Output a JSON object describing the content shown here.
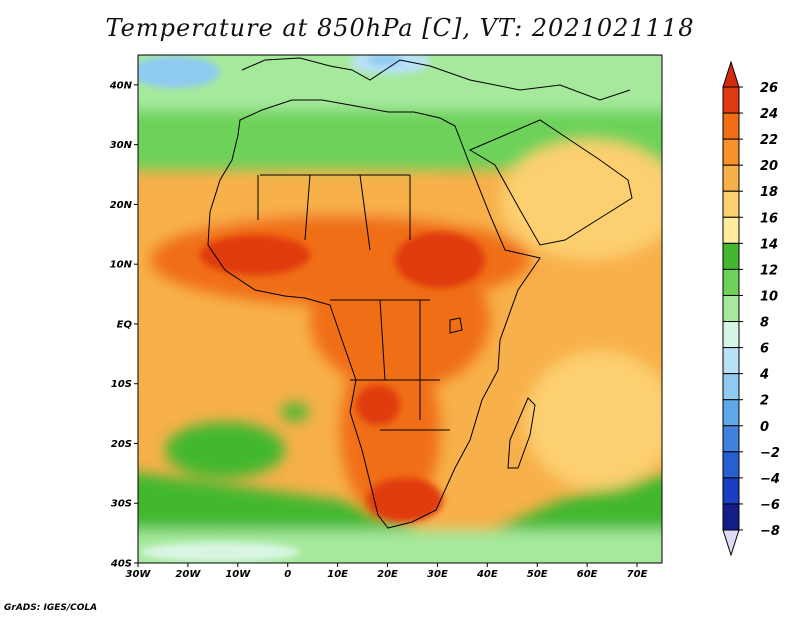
{
  "title": "Temperature at 850hPa [C], VT: 2021021118",
  "credit": "GrADS: IGES/COLA",
  "map": {
    "lon_range": [
      -30,
      75
    ],
    "lat_range": [
      -40,
      45
    ],
    "x_ticks": [
      "30W",
      "20W",
      "10W",
      "0",
      "10E",
      "20E",
      "30E",
      "40E",
      "50E",
      "60E",
      "70E"
    ],
    "y_ticks": [
      "40N",
      "30N",
      "20N",
      "10N",
      "EQ",
      "10S",
      "20S",
      "30S",
      "40S"
    ]
  },
  "colorbar": {
    "levels": [
      "26",
      "24",
      "22",
      "20",
      "18",
      "16",
      "14",
      "12",
      "10",
      "8",
      "6",
      "4",
      "2",
      "0",
      "−2",
      "−4",
      "−6",
      "−8"
    ],
    "colors": [
      "#e03a0e",
      "#f06e14",
      "#f7922a",
      "#f8b04a",
      "#fccf70",
      "#feeb9c",
      "#43b82e",
      "#6dd25a",
      "#a6e99c",
      "#d9f6e4",
      "#b9e2f9",
      "#8ecaf2",
      "#5ea8ea",
      "#3f82de",
      "#255fd0",
      "#1c3ec2",
      "#141c8a"
    ],
    "over_color": "#d12b0b",
    "under_color": "#dcdcf7"
  }
}
